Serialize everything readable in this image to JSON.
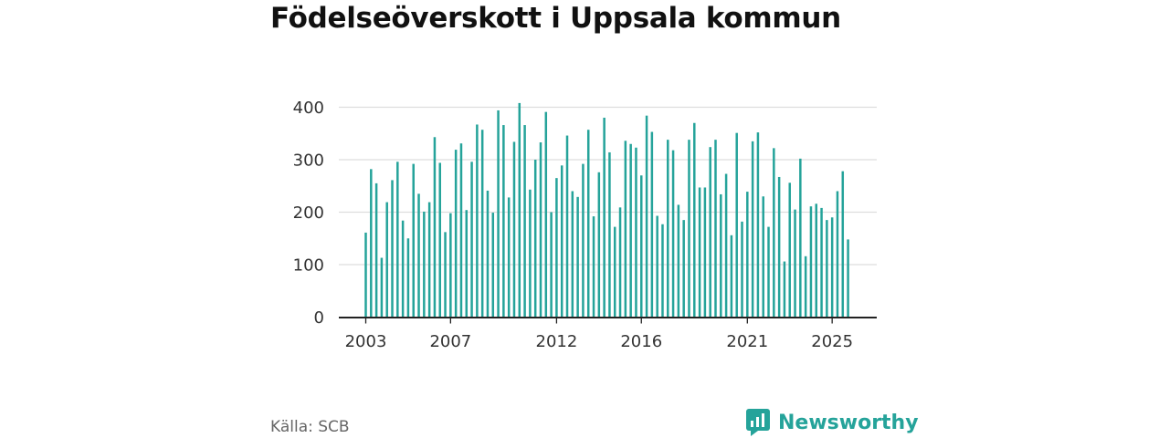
{
  "title": "Födelseöverskott i Uppsala kommun",
  "source": "Källa: SCB",
  "brand": {
    "name": "Newsworthy"
  },
  "colors": {
    "bar": "#25a39a",
    "grid": "#dddddd",
    "axis": "#222222",
    "tick": "#333333"
  },
  "chart_data": {
    "type": "bar",
    "ylim": [
      0,
      400
    ],
    "yticks": [
      0,
      100,
      200,
      300,
      400
    ],
    "xticks": [
      2003,
      2007,
      2012,
      2016,
      2021,
      2025
    ],
    "x_start": "2003-01",
    "x_interval": "quarter",
    "grid": true,
    "values": [
      161,
      282,
      255,
      113,
      219,
      261,
      296,
      184,
      150,
      292,
      235,
      201,
      219,
      343,
      294,
      162,
      198,
      319,
      331,
      204,
      296,
      367,
      357,
      241,
      199,
      394,
      366,
      228,
      334,
      408,
      366,
      243,
      300,
      333,
      391,
      200,
      265,
      289,
      346,
      240,
      229,
      292,
      357,
      192,
      276,
      380,
      314,
      172,
      209,
      336,
      330,
      323,
      270,
      384,
      353,
      193,
      177,
      338,
      318,
      214,
      185,
      338,
      370,
      247,
      247,
      324,
      338,
      234,
      273,
      156,
      351,
      182,
      239,
      335,
      352,
      230,
      172,
      322,
      267,
      106,
      256,
      205,
      302,
      116,
      211,
      216,
      208,
      185,
      190,
      240,
      278,
      148
    ]
  }
}
